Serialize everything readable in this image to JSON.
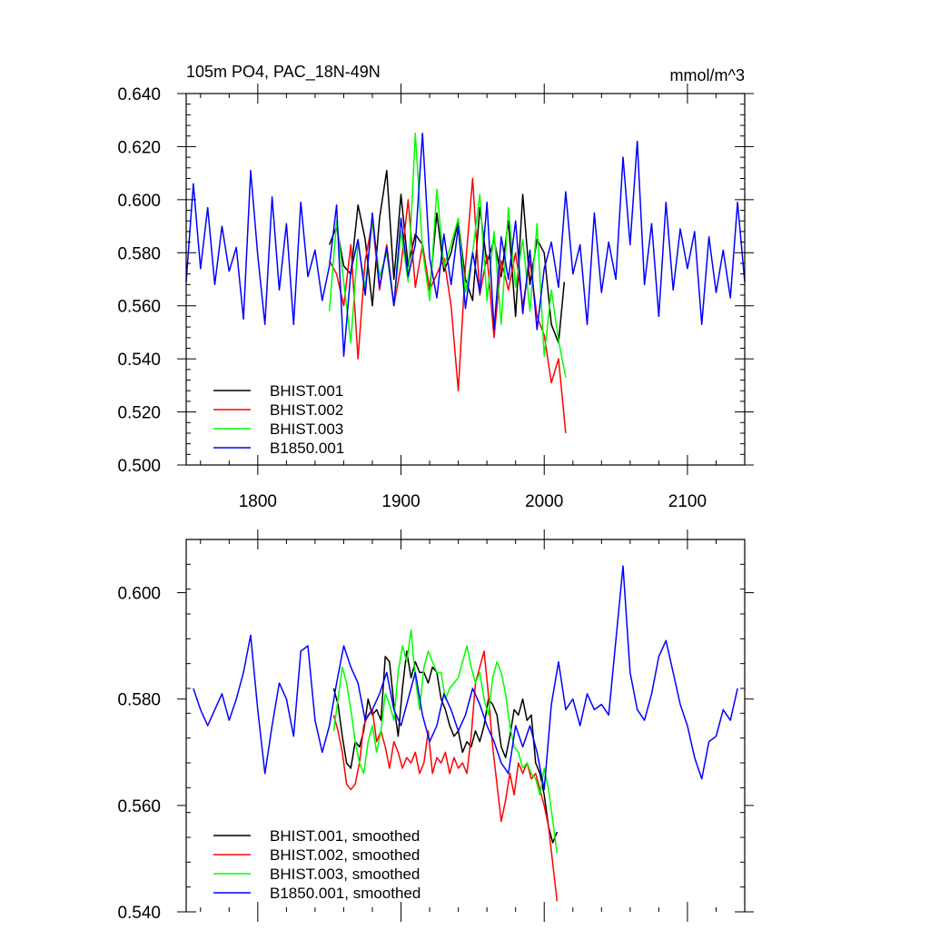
{
  "chart_data": [
    {
      "type": "line",
      "title": "105m PO4, PAC_18N-49N",
      "units": "mmol/m^3",
      "xlim": [
        1750,
        2140
      ],
      "ylim": [
        0.5,
        0.64
      ],
      "x_ticks": [
        1800,
        1900,
        2000,
        2100
      ],
      "x_tick_labels": [
        "1800",
        "1900",
        "2000",
        "2100"
      ],
      "y_ticks": [
        0.5,
        0.52,
        0.54,
        0.56,
        0.58,
        0.6,
        0.62,
        0.64
      ],
      "y_tick_labels": [
        "0.500",
        "0.520",
        "0.540",
        "0.560",
        "0.580",
        "0.600",
        "0.620",
        "0.640"
      ],
      "grid": false,
      "legend_position": "bottom-left",
      "series": [
        {
          "name": "BHIST.001",
          "color": "#000000",
          "x": [
            1850,
            1855,
            1860,
            1865,
            1870,
            1875,
            1880,
            1885,
            1890,
            1895,
            1900,
            1905,
            1910,
            1915,
            1920,
            1925,
            1930,
            1935,
            1940,
            1945,
            1950,
            1955,
            1960,
            1965,
            1970,
            1975,
            1980,
            1985,
            1990,
            1995,
            2000,
            2005,
            2010,
            2014
          ],
          "y": [
            0.583,
            0.59,
            0.575,
            0.572,
            0.598,
            0.585,
            0.56,
            0.593,
            0.611,
            0.57,
            0.602,
            0.575,
            0.587,
            0.583,
            0.566,
            0.595,
            0.573,
            0.58,
            0.592,
            0.57,
            0.562,
            0.597,
            0.576,
            0.585,
            0.571,
            0.592,
            0.556,
            0.602,
            0.568,
            0.585,
            0.58,
            0.553,
            0.546,
            0.569
          ]
        },
        {
          "name": "BHIST.002",
          "color": "#ff0000",
          "x": [
            1850,
            1855,
            1860,
            1865,
            1870,
            1875,
            1880,
            1885,
            1890,
            1895,
            1900,
            1905,
            1910,
            1915,
            1920,
            1925,
            1930,
            1935,
            1940,
            1945,
            1950,
            1955,
            1960,
            1965,
            1970,
            1975,
            1980,
            1985,
            1990,
            1995,
            2000,
            2005,
            2010,
            2015
          ],
          "y": [
            0.577,
            0.572,
            0.56,
            0.583,
            0.54,
            0.577,
            0.592,
            0.566,
            0.583,
            0.56,
            0.575,
            0.6,
            0.567,
            0.583,
            0.566,
            0.572,
            0.578,
            0.56,
            0.528,
            0.575,
            0.608,
            0.564,
            0.579,
            0.548,
            0.577,
            0.566,
            0.58,
            0.56,
            0.577,
            0.556,
            0.549,
            0.531,
            0.54,
            0.512
          ]
        },
        {
          "name": "BHIST.003",
          "color": "#00ff00",
          "x": [
            1850,
            1855,
            1860,
            1865,
            1870,
            1875,
            1880,
            1885,
            1890,
            1895,
            1900,
            1905,
            1910,
            1915,
            1920,
            1925,
            1930,
            1935,
            1940,
            1945,
            1950,
            1955,
            1960,
            1965,
            1970,
            1975,
            1980,
            1985,
            1990,
            1995,
            2000,
            2005,
            2010,
            2015
          ],
          "y": [
            0.558,
            0.592,
            0.569,
            0.546,
            0.584,
            0.567,
            0.592,
            0.571,
            0.58,
            0.56,
            0.588,
            0.569,
            0.625,
            0.581,
            0.562,
            0.604,
            0.575,
            0.583,
            0.593,
            0.565,
            0.58,
            0.602,
            0.562,
            0.588,
            0.553,
            0.597,
            0.567,
            0.585,
            0.558,
            0.591,
            0.541,
            0.566,
            0.547,
            0.533
          ]
        },
        {
          "name": "B1850.001",
          "color": "#0000ff",
          "x": [
            1750,
            1755,
            1760,
            1765,
            1770,
            1775,
            1780,
            1785,
            1790,
            1795,
            1800,
            1805,
            1810,
            1815,
            1820,
            1825,
            1830,
            1835,
            1840,
            1845,
            1850,
            1855,
            1860,
            1865,
            1870,
            1875,
            1880,
            1885,
            1890,
            1895,
            1900,
            1905,
            1910,
            1915,
            1920,
            1925,
            1930,
            1935,
            1940,
            1945,
            1950,
            1955,
            1960,
            1965,
            1970,
            1975,
            1980,
            1985,
            1990,
            1995,
            2000,
            2005,
            2010,
            2015,
            2020,
            2025,
            2030,
            2035,
            2040,
            2045,
            2050,
            2055,
            2060,
            2065,
            2070,
            2075,
            2080,
            2085,
            2090,
            2095,
            2100,
            2105,
            2110,
            2115,
            2120,
            2125,
            2130,
            2135,
            2140
          ],
          "y": [
            0.569,
            0.606,
            0.574,
            0.597,
            0.568,
            0.59,
            0.573,
            0.582,
            0.555,
            0.611,
            0.579,
            0.553,
            0.601,
            0.566,
            0.591,
            0.553,
            0.599,
            0.571,
            0.581,
            0.562,
            0.575,
            0.598,
            0.541,
            0.573,
            0.585,
            0.564,
            0.595,
            0.567,
            0.582,
            0.56,
            0.593,
            0.571,
            0.583,
            0.625,
            0.578,
            0.563,
            0.587,
            0.568,
            0.59,
            0.559,
            0.58,
            0.565,
            0.599,
            0.551,
            0.586,
            0.57,
            0.592,
            0.557,
            0.581,
            0.551,
            0.574,
            0.584,
            0.567,
            0.603,
            0.572,
            0.583,
            0.553,
            0.595,
            0.565,
            0.584,
            0.57,
            0.616,
            0.583,
            0.622,
            0.568,
            0.591,
            0.556,
            0.599,
            0.566,
            0.589,
            0.574,
            0.588,
            0.553,
            0.586,
            0.565,
            0.581,
            0.563,
            0.599,
            0.569
          ]
        }
      ]
    },
    {
      "type": "line",
      "xlim": [
        1750,
        2140
      ],
      "ylim": [
        0.54,
        0.61
      ],
      "x_ticks": [
        1800,
        1900,
        2000,
        2100
      ],
      "y_ticks": [
        0.54,
        0.56,
        0.58,
        0.6
      ],
      "y_tick_labels": [
        "0.540",
        "0.560",
        "0.580",
        "0.600"
      ],
      "grid": false,
      "legend_position": "bottom-left",
      "series": [
        {
          "name": "BHIST.001, smoothed",
          "color": "#000000",
          "x": [
            1853,
            1856,
            1859,
            1862,
            1865,
            1868,
            1871,
            1874,
            1877,
            1880,
            1883,
            1886,
            1889,
            1892,
            1895,
            1898,
            1901,
            1904,
            1907,
            1910,
            1913,
            1916,
            1919,
            1922,
            1925,
            1928,
            1931,
            1934,
            1937,
            1940,
            1943,
            1946,
            1949,
            1952,
            1955,
            1958,
            1961,
            1964,
            1967,
            1970,
            1973,
            1976,
            1979,
            1982,
            1985,
            1988,
            1991,
            1994,
            1997,
            2000,
            2003,
            2006,
            2009
          ],
          "y": [
            0.582,
            0.579,
            0.573,
            0.568,
            0.567,
            0.572,
            0.571,
            0.574,
            0.58,
            0.577,
            0.578,
            0.576,
            0.588,
            0.587,
            0.579,
            0.573,
            0.582,
            0.589,
            0.584,
            0.587,
            0.585,
            0.585,
            0.583,
            0.586,
            0.585,
            0.58,
            0.578,
            0.575,
            0.573,
            0.574,
            0.57,
            0.572,
            0.571,
            0.574,
            0.572,
            0.575,
            0.58,
            0.579,
            0.577,
            0.571,
            0.569,
            0.573,
            0.578,
            0.577,
            0.58,
            0.576,
            0.577,
            0.568,
            0.566,
            0.562,
            0.556,
            0.553,
            0.555
          ]
        },
        {
          "name": "BHIST.002, smoothed",
          "color": "#ff0000",
          "x": [
            1853,
            1856,
            1859,
            1862,
            1865,
            1868,
            1871,
            1874,
            1877,
            1880,
            1883,
            1886,
            1889,
            1892,
            1895,
            1898,
            1901,
            1904,
            1907,
            1910,
            1913,
            1916,
            1919,
            1922,
            1925,
            1928,
            1931,
            1934,
            1937,
            1940,
            1943,
            1946,
            1949,
            1952,
            1955,
            1958,
            1961,
            1964,
            1967,
            1970,
            1973,
            1976,
            1979,
            1982,
            1985,
            1988,
            1991,
            1994,
            1997,
            2000,
            2003,
            2006,
            2009
          ],
          "y": [
            0.577,
            0.574,
            0.57,
            0.564,
            0.563,
            0.564,
            0.568,
            0.575,
            0.577,
            0.578,
            0.572,
            0.574,
            0.571,
            0.567,
            0.572,
            0.57,
            0.567,
            0.569,
            0.568,
            0.57,
            0.566,
            0.568,
            0.574,
            0.566,
            0.569,
            0.568,
            0.57,
            0.566,
            0.569,
            0.567,
            0.568,
            0.566,
            0.573,
            0.583,
            0.586,
            0.589,
            0.581,
            0.571,
            0.564,
            0.557,
            0.561,
            0.566,
            0.562,
            0.568,
            0.566,
            0.568,
            0.565,
            0.566,
            0.563,
            0.56,
            0.556,
            0.549,
            0.542
          ]
        },
        {
          "name": "BHIST.003, smoothed",
          "color": "#00ff00",
          "x": [
            1853,
            1856,
            1859,
            1862,
            1865,
            1868,
            1871,
            1874,
            1877,
            1880,
            1883,
            1886,
            1889,
            1892,
            1895,
            1898,
            1901,
            1904,
            1907,
            1910,
            1913,
            1916,
            1919,
            1922,
            1925,
            1928,
            1931,
            1934,
            1937,
            1940,
            1943,
            1946,
            1949,
            1952,
            1955,
            1958,
            1961,
            1964,
            1967,
            1970,
            1973,
            1976,
            1979,
            1982,
            1985,
            1988,
            1991,
            1994,
            1997,
            2000,
            2003,
            2006,
            2009
          ],
          "y": [
            0.574,
            0.58,
            0.586,
            0.583,
            0.578,
            0.572,
            0.568,
            0.566,
            0.572,
            0.575,
            0.57,
            0.574,
            0.581,
            0.579,
            0.576,
            0.585,
            0.59,
            0.587,
            0.593,
            0.584,
            0.578,
            0.586,
            0.589,
            0.587,
            0.585,
            0.585,
            0.58,
            0.582,
            0.583,
            0.584,
            0.587,
            0.59,
            0.586,
            0.583,
            0.585,
            0.58,
            0.577,
            0.584,
            0.587,
            0.585,
            0.581,
            0.575,
            0.571,
            0.57,
            0.567,
            0.568,
            0.566,
            0.565,
            0.562,
            0.567,
            0.563,
            0.557,
            0.551
          ]
        },
        {
          "name": "B1850.001, smoothed",
          "color": "#0000ff",
          "x": [
            1755,
            1760,
            1765,
            1770,
            1775,
            1780,
            1785,
            1790,
            1795,
            1800,
            1805,
            1810,
            1815,
            1820,
            1825,
            1830,
            1835,
            1840,
            1845,
            1850,
            1855,
            1860,
            1865,
            1870,
            1875,
            1880,
            1885,
            1890,
            1895,
            1900,
            1905,
            1910,
            1915,
            1920,
            1925,
            1930,
            1935,
            1940,
            1945,
            1950,
            1955,
            1960,
            1965,
            1970,
            1975,
            1980,
            1985,
            1990,
            1995,
            2000,
            2005,
            2010,
            2015,
            2020,
            2025,
            2030,
            2035,
            2040,
            2045,
            2050,
            2055,
            2060,
            2065,
            2070,
            2075,
            2080,
            2085,
            2090,
            2095,
            2100,
            2105,
            2110,
            2115,
            2120,
            2125,
            2130,
            2135
          ],
          "y": [
            0.582,
            0.578,
            0.575,
            0.578,
            0.581,
            0.576,
            0.58,
            0.585,
            0.592,
            0.578,
            0.566,
            0.575,
            0.583,
            0.58,
            0.573,
            0.589,
            0.59,
            0.576,
            0.57,
            0.575,
            0.583,
            0.59,
            0.586,
            0.583,
            0.576,
            0.578,
            0.581,
            0.585,
            0.578,
            0.575,
            0.58,
            0.585,
            0.577,
            0.572,
            0.575,
            0.581,
            0.578,
            0.574,
            0.577,
            0.582,
            0.579,
            0.575,
            0.572,
            0.568,
            0.566,
            0.575,
            0.571,
            0.575,
            0.57,
            0.563,
            0.579,
            0.587,
            0.578,
            0.58,
            0.575,
            0.581,
            0.578,
            0.579,
            0.577,
            0.591,
            0.605,
            0.585,
            0.578,
            0.576,
            0.581,
            0.588,
            0.591,
            0.585,
            0.579,
            0.575,
            0.569,
            0.565,
            0.572,
            0.573,
            0.578,
            0.576,
            0.582
          ]
        }
      ]
    }
  ]
}
